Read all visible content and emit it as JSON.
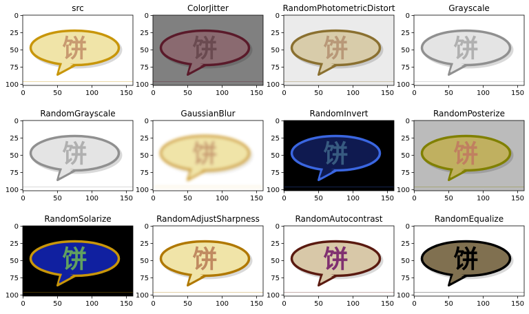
{
  "chart_data": [
    {
      "type": "image",
      "title": "src",
      "annotation": "饼",
      "background": "#ffffff",
      "fill": "#f0e4a8",
      "stroke": "#c8960a",
      "text_color": "#c89a70",
      "xlim": [
        -0.5,
        159.5
      ],
      "ylim": [
        101.5,
        -0.5
      ],
      "xticks": [
        0,
        50,
        100,
        150
      ],
      "yticks": [
        0,
        25,
        50,
        75,
        100
      ]
    },
    {
      "type": "image",
      "title": "ColorJitter",
      "annotation": "饼",
      "background": "#808080",
      "fill": "#8a6a70",
      "stroke": "#5a1a2a",
      "text_color": "#6a4a50",
      "xlim": [
        -0.5,
        159.5
      ],
      "ylim": [
        101.5,
        -0.5
      ],
      "xticks": [
        0,
        50,
        100,
        150
      ],
      "yticks": [
        0,
        25,
        50,
        75,
        100
      ]
    },
    {
      "type": "image",
      "title": "RandomPhotometricDistort",
      "annotation": "饼",
      "background": "#ebebeb",
      "fill": "#d8ccaa",
      "stroke": "#8a7030",
      "text_color": "#b89878",
      "xlim": [
        -0.5,
        159.5
      ],
      "ylim": [
        101.5,
        -0.5
      ],
      "xticks": [
        0,
        50,
        100,
        150
      ],
      "yticks": [
        0,
        25,
        50,
        75,
        100
      ]
    },
    {
      "type": "image",
      "title": "Grayscale",
      "annotation": "饼",
      "background": "#ffffff",
      "fill": "#e4e4e4",
      "stroke": "#909090",
      "text_color": "#b0b0b0",
      "xlim": [
        -0.5,
        159.5
      ],
      "ylim": [
        101.5,
        -0.5
      ],
      "xticks": [
        0,
        50,
        100,
        150
      ],
      "yticks": [
        0,
        25,
        50,
        75,
        100
      ]
    },
    {
      "type": "image",
      "title": "RandomGrayscale",
      "annotation": "饼",
      "background": "#ffffff",
      "fill": "#e4e4e4",
      "stroke": "#909090",
      "text_color": "#b0b0b0",
      "xlim": [
        -0.5,
        159.5
      ],
      "ylim": [
        101.5,
        -0.5
      ],
      "xticks": [
        0,
        50,
        100,
        150
      ],
      "yticks": [
        0,
        25,
        50,
        75,
        100
      ]
    },
    {
      "type": "image",
      "title": "GaussianBlur",
      "annotation": "饼",
      "background": "#ffffff",
      "fill": "#f0e4a8",
      "stroke": "#d0a030",
      "text_color": "#c89a70",
      "blur": true,
      "xlim": [
        -0.5,
        159.5
      ],
      "ylim": [
        101.5,
        -0.5
      ],
      "xticks": [
        0,
        50,
        100,
        150
      ],
      "yticks": [
        0,
        25,
        50,
        75,
        100
      ]
    },
    {
      "type": "image",
      "title": "RandomInvert",
      "annotation": "饼",
      "background": "#000000",
      "fill": "#0f1a50",
      "stroke": "#3a66e0",
      "text_color": "#375a80",
      "xlim": [
        -0.5,
        159.5
      ],
      "ylim": [
        101.5,
        -0.5
      ],
      "xticks": [
        0,
        50,
        100,
        150
      ],
      "yticks": [
        0,
        25,
        50,
        75,
        100
      ]
    },
    {
      "type": "image",
      "title": "RandomPosterize",
      "annotation": "饼",
      "background": "#bbbbbb",
      "fill": "#c0b060",
      "stroke": "#808000",
      "text_color": "#c08060",
      "xlim": [
        -0.5,
        159.5
      ],
      "ylim": [
        101.5,
        -0.5
      ],
      "xticks": [
        0,
        50,
        100,
        150
      ],
      "yticks": [
        0,
        25,
        50,
        75,
        100
      ]
    },
    {
      "type": "image",
      "title": "RandomSolarize",
      "annotation": "饼",
      "background": "#000000",
      "fill": "#1020a0",
      "stroke": "#c8960a",
      "text_color": "#60a060",
      "xlim": [
        -0.5,
        159.5
      ],
      "ylim": [
        101.5,
        -0.5
      ],
      "xticks": [
        0,
        50,
        100,
        150
      ],
      "yticks": [
        0,
        25,
        50,
        75,
        100
      ]
    },
    {
      "type": "image",
      "title": "RandomAdjustSharpness",
      "annotation": "饼",
      "background": "#ffffff",
      "fill": "#f0e4a8",
      "stroke": "#b07800",
      "text_color": "#c08a60",
      "xlim": [
        -0.5,
        159.5
      ],
      "ylim": [
        101.5,
        -0.5
      ],
      "xticks": [
        0,
        50,
        100,
        150
      ],
      "yticks": [
        0,
        25,
        50,
        75,
        100
      ]
    },
    {
      "type": "image",
      "title": "RandomAutocontrast",
      "annotation": "饼",
      "background": "#ffffff",
      "fill": "#d8c8a8",
      "stroke": "#5a1a10",
      "text_color": "#803070",
      "xlim": [
        -0.5,
        159.5
      ],
      "ylim": [
        101.5,
        -0.5
      ],
      "xticks": [
        0,
        50,
        100,
        150
      ],
      "yticks": [
        0,
        25,
        50,
        75,
        100
      ]
    },
    {
      "type": "image",
      "title": "RandomEqualize",
      "annotation": "饼",
      "background": "#ffffff",
      "fill": "#807050",
      "stroke": "#000000",
      "text_color": "#000000",
      "xlim": [
        -0.5,
        159.5
      ],
      "ylim": [
        101.5,
        -0.5
      ],
      "xticks": [
        0,
        50,
        100,
        150
      ],
      "yticks": [
        0,
        25,
        50,
        75,
        100
      ]
    }
  ]
}
